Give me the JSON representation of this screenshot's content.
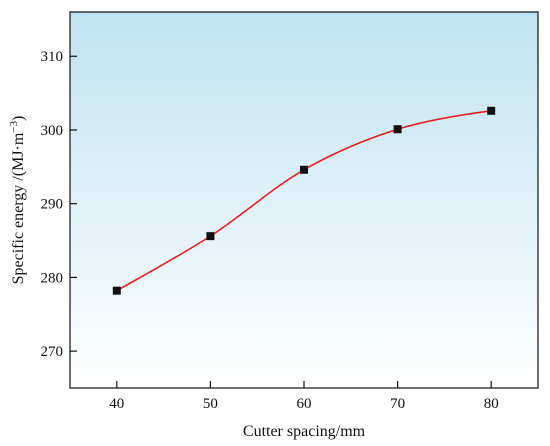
{
  "chart_data": {
    "type": "line",
    "title": "",
    "xlabel": "Cutter spacing/mm",
    "ylabel_main": "Specific energy /(MJ·m",
    "ylabel_sup": "−3",
    "ylabel_tail": ")",
    "x": [
      40,
      50,
      60,
      70,
      80
    ],
    "series": [
      {
        "values": [
          278.2,
          285.6,
          294.6,
          300.1,
          302.6
        ]
      }
    ],
    "xlim": [
      35,
      85
    ],
    "ylim": [
      265,
      316
    ],
    "xticks": [
      40,
      50,
      60,
      70,
      80
    ],
    "yticks": [
      270,
      280,
      290,
      300,
      310
    ],
    "grid": false,
    "legend": "none",
    "background_gradient": [
      "#bfe3f1",
      "#ffffff"
    ],
    "line_color": "#e8201c",
    "marker_color": "#111111",
    "marker_shape": "square"
  }
}
